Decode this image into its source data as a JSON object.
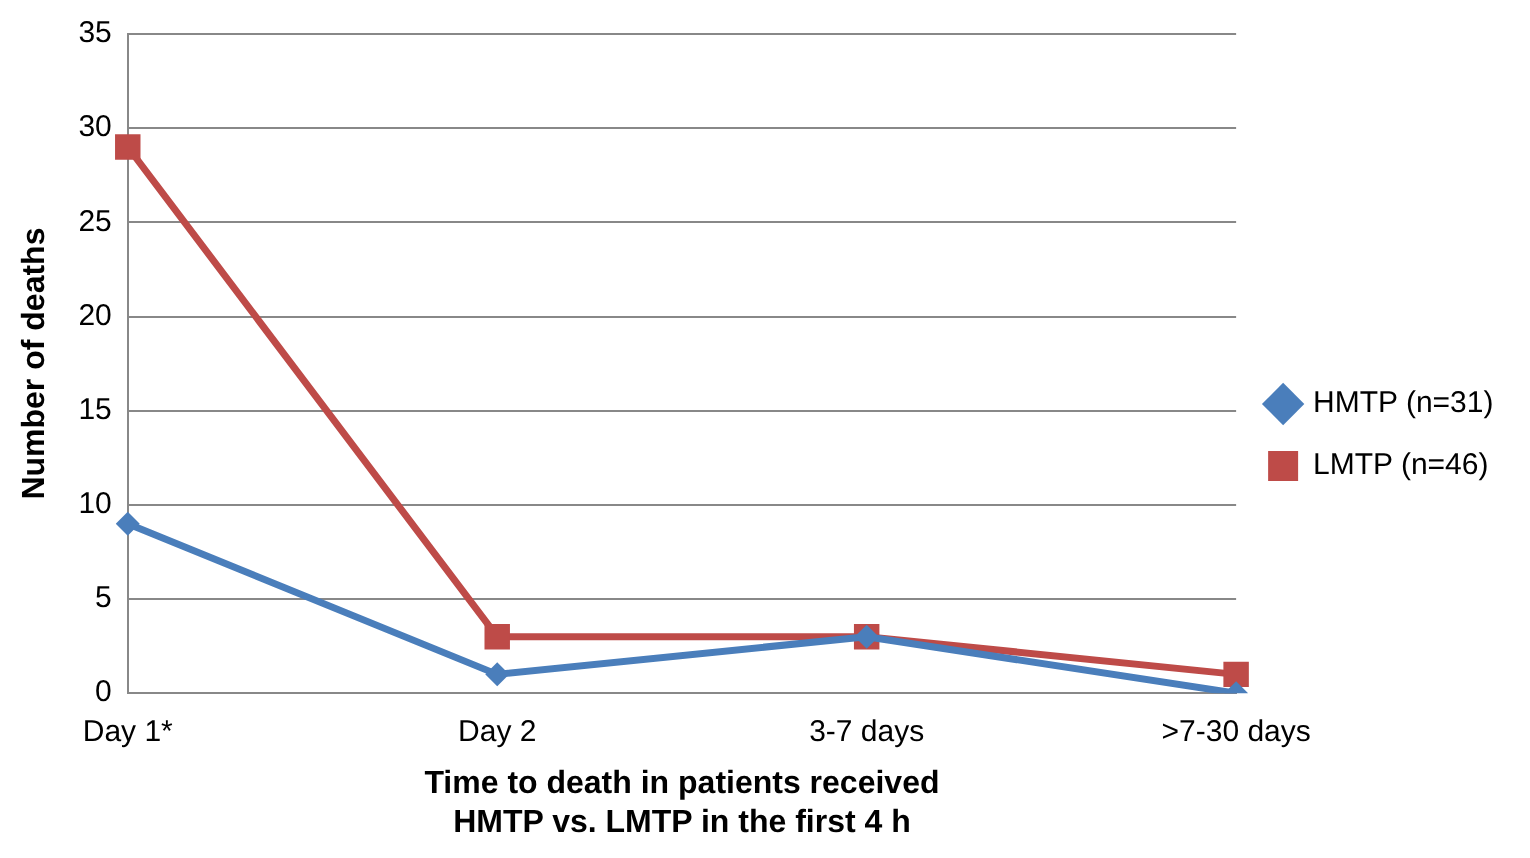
{
  "chart_data": {
    "type": "line",
    "xlabel": "Time to death in patients received\nHMTP vs. LMTP in the first 4 h",
    "ylabel": "Number of deaths",
    "categories": [
      "Day 1*",
      "Day 2",
      "3-7 days",
      ">7-30 days"
    ],
    "series": [
      {
        "name": "HMTP (n=31)",
        "color": "#4a7ebb",
        "marker": "diamond",
        "values": [
          9,
          1,
          3,
          0
        ]
      },
      {
        "name": "LMTP (n=46)",
        "color": "#be4b48",
        "marker": "square",
        "values": [
          29,
          3,
          3,
          1
        ]
      }
    ],
    "ylim": [
      0,
      35
    ],
    "yticks": [
      0,
      5,
      10,
      15,
      20,
      25,
      30,
      35
    ],
    "grid": "y",
    "legend": "right",
    "line_style": "solid"
  }
}
